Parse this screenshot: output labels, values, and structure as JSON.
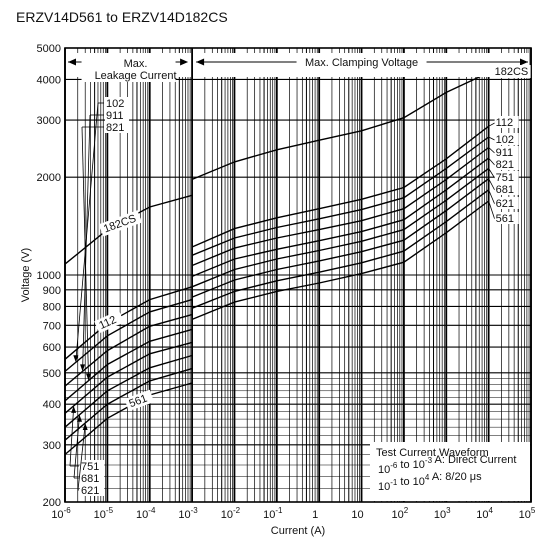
{
  "chart_data": {
    "type": "line",
    "title": "ERZV14D561  to  ERZV14D182CS",
    "xlabel": "Current (A)",
    "ylabel": "Voltage (V)",
    "xscale": "log",
    "yscale": "log",
    "xlim": [
      1e-06,
      100000
    ],
    "ylim": [
      200,
      5000
    ],
    "grid": true,
    "x_ticks": [
      {
        "value": 1e-06,
        "base": "10",
        "exp": "-6"
      },
      {
        "value": 1e-05,
        "base": "10",
        "exp": "-5"
      },
      {
        "value": 0.0001,
        "base": "10",
        "exp": "-4"
      },
      {
        "value": 0.001,
        "base": "10",
        "exp": "-3"
      },
      {
        "value": 0.01,
        "base": "10",
        "exp": "-2"
      },
      {
        "value": 0.1,
        "base": "10",
        "exp": "-1"
      },
      {
        "value": 1,
        "base": "1",
        "exp": ""
      },
      {
        "value": 10,
        "base": "10",
        "exp": ""
      },
      {
        "value": 100,
        "base": "10",
        "exp": "2"
      },
      {
        "value": 1000,
        "base": "10",
        "exp": "3"
      },
      {
        "value": 10000,
        "base": "10",
        "exp": "4"
      },
      {
        "value": 100000,
        "base": "10",
        "exp": "5"
      }
    ],
    "y_ticks": [
      {
        "value": 200,
        "label": "200"
      },
      {
        "value": 300,
        "label": "300"
      },
      {
        "value": 400,
        "label": "400"
      },
      {
        "value": 500,
        "label": "500"
      },
      {
        "value": 600,
        "label": "600"
      },
      {
        "value": 700,
        "label": "700"
      },
      {
        "value": 800,
        "label": "800"
      },
      {
        "value": 900,
        "label": "900"
      },
      {
        "value": 1000,
        "label": "1000"
      },
      {
        "value": 2000,
        "label": "2000"
      },
      {
        "value": 3000,
        "label": "3000"
      },
      {
        "value": 4000,
        "label": "4000"
      },
      {
        "value": 5000,
        "label": "5000"
      }
    ],
    "regions": [
      {
        "label": "Max.\nLeakage Current",
        "x_range": [
          1e-06,
          0.001
        ]
      },
      {
        "label": "Max. Clamping Voltage",
        "x_range": [
          0.001,
          100000
        ]
      }
    ],
    "series": [
      {
        "name": "182CS",
        "leakage": [
          [
            1e-06,
            1080
          ],
          [
            1e-05,
            1380
          ],
          [
            0.0001,
            1620
          ],
          [
            0.001,
            1760
          ]
        ],
        "clamping": [
          [
            0.001,
            1970
          ],
          [
            0.01,
            2230
          ],
          [
            0.1,
            2430
          ],
          [
            1,
            2600
          ],
          [
            10,
            2780
          ],
          [
            100,
            3050
          ],
          [
            1000,
            3650
          ],
          [
            10000,
            4200
          ]
        ]
      },
      {
        "name": "112",
        "leakage": [
          [
            1e-06,
            550
          ],
          [
            1e-05,
            710
          ],
          [
            0.0001,
            840
          ],
          [
            0.001,
            920
          ]
        ],
        "clamping": [
          [
            0.001,
            1220
          ],
          [
            0.01,
            1390
          ],
          [
            0.1,
            1500
          ],
          [
            1,
            1600
          ],
          [
            10,
            1710
          ],
          [
            100,
            1860
          ],
          [
            1000,
            2280
          ],
          [
            10000,
            2870
          ]
        ]
      },
      {
        "name": "102",
        "leakage": [
          [
            1e-06,
            505
          ],
          [
            1e-05,
            650
          ],
          [
            0.0001,
            770
          ],
          [
            0.001,
            840
          ]
        ],
        "clamping": [
          [
            0.001,
            1150
          ],
          [
            0.01,
            1300
          ],
          [
            0.1,
            1400
          ],
          [
            1,
            1490
          ],
          [
            10,
            1590
          ],
          [
            100,
            1730
          ],
          [
            1000,
            2130
          ],
          [
            10000,
            2660
          ]
        ]
      },
      {
        "name": "911",
        "leakage": [
          [
            1e-06,
            455
          ],
          [
            1e-05,
            585
          ],
          [
            0.0001,
            695
          ],
          [
            0.001,
            755
          ]
        ],
        "clamping": [
          [
            0.001,
            1070
          ],
          [
            0.01,
            1210
          ],
          [
            0.1,
            1300
          ],
          [
            1,
            1380
          ],
          [
            10,
            1470
          ],
          [
            100,
            1600
          ],
          [
            1000,
            1970
          ],
          [
            10000,
            2470
          ]
        ]
      },
      {
        "name": "821",
        "leakage": [
          [
            1e-06,
            410
          ],
          [
            1e-05,
            530
          ],
          [
            0.0001,
            625
          ],
          [
            0.001,
            680
          ]
        ],
        "clamping": [
          [
            0.001,
            990
          ],
          [
            0.01,
            1120
          ],
          [
            0.1,
            1200
          ],
          [
            1,
            1275
          ],
          [
            10,
            1360
          ],
          [
            100,
            1480
          ],
          [
            1000,
            1830
          ],
          [
            10000,
            2290
          ]
        ]
      },
      {
        "name": "751",
        "leakage": [
          [
            1e-06,
            375
          ],
          [
            1e-05,
            485
          ],
          [
            0.0001,
            572
          ],
          [
            0.001,
            620
          ]
        ],
        "clamping": [
          [
            0.001,
            920
          ],
          [
            0.01,
            1040
          ],
          [
            0.1,
            1120
          ],
          [
            1,
            1190
          ],
          [
            10,
            1270
          ],
          [
            100,
            1380
          ],
          [
            1000,
            1700
          ],
          [
            10000,
            2130
          ]
        ]
      },
      {
        "name": "681",
        "leakage": [
          [
            1e-06,
            340
          ],
          [
            1e-05,
            440
          ],
          [
            0.0001,
            518
          ],
          [
            0.001,
            565
          ]
        ],
        "clamping": [
          [
            0.001,
            855
          ],
          [
            0.01,
            965
          ],
          [
            0.1,
            1040
          ],
          [
            1,
            1105
          ],
          [
            10,
            1180
          ],
          [
            100,
            1280
          ],
          [
            1000,
            1580
          ],
          [
            10000,
            1980
          ]
        ]
      },
      {
        "name": "621",
        "leakage": [
          [
            1e-06,
            310
          ],
          [
            1e-05,
            400
          ],
          [
            0.0001,
            472
          ],
          [
            0.001,
            515
          ]
        ],
        "clamping": [
          [
            0.001,
            790
          ],
          [
            0.01,
            890
          ],
          [
            0.1,
            960
          ],
          [
            1,
            1020
          ],
          [
            10,
            1090
          ],
          [
            100,
            1185
          ],
          [
            1000,
            1460
          ],
          [
            10000,
            1830
          ]
        ]
      },
      {
        "name": "561",
        "leakage": [
          [
            1e-06,
            280
          ],
          [
            1e-05,
            362
          ],
          [
            0.0001,
            427
          ],
          [
            0.001,
            465
          ]
        ],
        "clamping": [
          [
            0.001,
            730
          ],
          [
            0.01,
            825
          ],
          [
            0.1,
            890
          ],
          [
            1,
            945
          ],
          [
            10,
            1010
          ],
          [
            100,
            1095
          ],
          [
            1000,
            1350
          ],
          [
            10000,
            1690
          ]
        ]
      }
    ],
    "legend_groups": {
      "top_left": [
        "102",
        "911",
        "821"
      ],
      "bottom_left": [
        "751",
        "681",
        "621"
      ]
    },
    "annotation": {
      "title": "Test Current Waveform",
      "line1": {
        "a_base": "10",
        "a_exp": "-6",
        "mid": " to ",
        "b_base": "10",
        "b_exp": "-3",
        "tail": " A: Direct Current"
      },
      "line2": {
        "a_base": "10",
        "a_exp": "-1",
        "mid": " to ",
        "b_base": "10",
        "b_exp": "4",
        "tail": " A:  8/20 μs"
      }
    }
  }
}
